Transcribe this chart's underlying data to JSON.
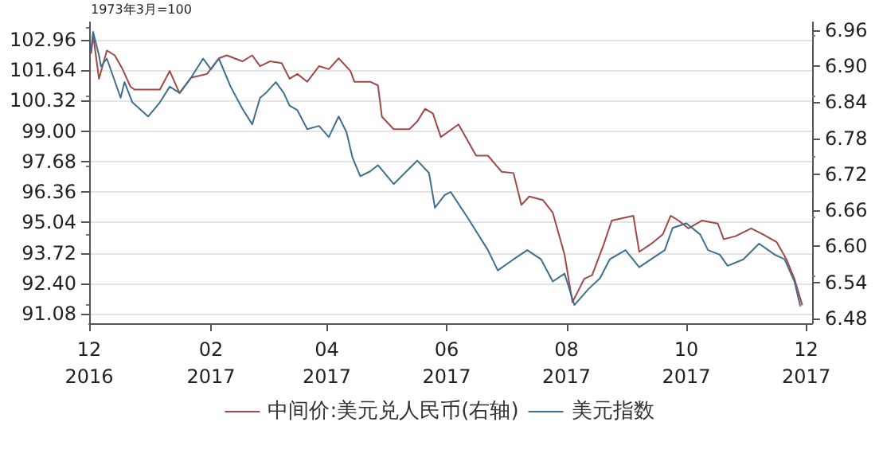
{
  "chart_data": {
    "type": "line",
    "annotations": [
      "1973年3月=100"
    ],
    "x": [
      "2016-12-02",
      "2016-12-03",
      "2016-12-06",
      "2016-12-07",
      "2016-12-10",
      "2016-12-17",
      "2016-12-19",
      "2016-12-23",
      "2016-12-31",
      "2017-01-06",
      "2017-01-11",
      "2017-01-16",
      "2017-01-22",
      "2017-01-28",
      "2017-02-01",
      "2017-02-05",
      "2017-02-11",
      "2017-02-17",
      "2017-02-22",
      "2017-02-26",
      "2017-03-01",
      "2017-03-06",
      "2017-03-10",
      "2017-03-13",
      "2017-03-17",
      "2017-03-22",
      "2017-03-28",
      "2017-04-02",
      "2017-04-07",
      "2017-04-11",
      "2017-04-14",
      "2017-04-18",
      "2017-04-23",
      "2017-04-27",
      "2017-05-05",
      "2017-05-13",
      "2017-05-17",
      "2017-05-23",
      "2017-05-26",
      "2017-05-31",
      "2017-06-03",
      "2017-06-12",
      "2017-06-22",
      "2017-06-27",
      "2017-07-05",
      "2017-07-12",
      "2017-07-19",
      "2017-07-25",
      "2017-07-31",
      "2017-08-05",
      "2017-08-12",
      "2017-08-18",
      "2017-08-23",
      "2017-08-31",
      "2017-09-07",
      "2017-09-13",
      "2017-09-20",
      "2017-09-24",
      "2017-10-01",
      "2017-10-08",
      "2017-10-12",
      "2017-10-18",
      "2017-10-22",
      "2017-10-30",
      "2017-11-07",
      "2017-11-15",
      "2017-11-20",
      "2017-11-25",
      "2017-11-28"
    ],
    "series": [
      {
        "name": "中间价:美元兑人民币(右轴)",
        "color": "#a04848",
        "axis": "y2",
        "x": [
          "2016-12-02",
          "2016-12-03",
          "2016-12-06",
          "2016-12-10",
          "2016-12-14",
          "2016-12-18",
          "2016-12-22",
          "2016-12-24",
          "2017-01-02",
          "2017-01-06",
          "2017-01-11",
          "2017-01-16",
          "2017-01-22",
          "2017-01-30",
          "2017-02-05",
          "2017-02-09",
          "2017-02-17",
          "2017-02-22",
          "2017-02-26",
          "2017-03-03",
          "2017-03-09",
          "2017-03-13",
          "2017-03-17",
          "2017-03-22",
          "2017-03-28",
          "2017-04-02",
          "2017-04-07",
          "2017-04-13",
          "2017-04-15",
          "2017-04-23",
          "2017-04-27",
          "2017-04-29",
          "2017-05-05",
          "2017-05-13",
          "2017-05-17",
          "2017-05-21",
          "2017-05-25",
          "2017-05-29",
          "2017-06-07",
          "2017-06-16",
          "2017-06-22",
          "2017-06-29",
          "2017-07-05",
          "2017-07-09",
          "2017-07-13",
          "2017-07-20",
          "2017-07-25",
          "2017-07-31",
          "2017-08-04",
          "2017-08-10",
          "2017-08-14",
          "2017-08-20",
          "2017-08-24",
          "2017-09-04",
          "2017-09-07",
          "2017-09-13",
          "2017-09-19",
          "2017-09-23",
          "2017-09-27",
          "2017-10-02",
          "2017-10-09",
          "2017-10-17",
          "2017-10-20",
          "2017-10-26",
          "2017-11-03",
          "2017-11-09",
          "2017-11-16",
          "2017-11-21",
          "2017-11-25",
          "2017-11-29"
        ],
        "values": [
          6.921,
          6.952,
          6.879,
          6.926,
          6.918,
          6.895,
          6.866,
          6.861,
          6.861,
          6.861,
          6.892,
          6.855,
          6.881,
          6.887,
          6.913,
          6.918,
          6.908,
          6.918,
          6.9,
          6.908,
          6.905,
          6.879,
          6.887,
          6.874,
          6.9,
          6.895,
          6.913,
          6.892,
          6.874,
          6.874,
          6.868,
          6.816,
          6.795,
          6.795,
          6.808,
          6.829,
          6.821,
          6.782,
          6.803,
          6.751,
          6.751,
          6.724,
          6.722,
          6.669,
          6.683,
          6.677,
          6.656,
          6.586,
          6.507,
          6.546,
          6.552,
          6.604,
          6.643,
          6.651,
          6.591,
          6.604,
          6.62,
          6.651,
          6.643,
          6.63,
          6.643,
          6.638,
          6.612,
          6.617,
          6.63,
          6.62,
          6.607,
          6.578,
          6.546,
          6.502
        ]
      },
      {
        "name": "美元指数",
        "color": "#3f6f8f",
        "values": [
          102.48,
          103.3,
          102.28,
          101.8,
          102.14,
          100.44,
          101.12,
          100.24,
          99.63,
          100.24,
          100.92,
          100.65,
          101.33,
          102.14,
          101.67,
          102.14,
          100.92,
          99.97,
          99.29,
          100.44,
          100.65,
          101.12,
          100.65,
          100.1,
          99.9,
          99.08,
          99.22,
          98.74,
          99.63,
          98.95,
          97.86,
          97.04,
          97.25,
          97.52,
          96.7,
          97.38,
          97.72,
          97.18,
          95.68,
          96.23,
          96.36,
          95.2,
          93.84,
          92.96,
          93.44,
          93.84,
          93.44,
          92.48,
          92.82,
          91.46,
          92.14,
          92.62,
          93.44,
          93.84,
          93.1,
          93.44,
          93.84,
          94.8,
          95.0,
          94.52,
          93.84,
          93.64,
          93.16,
          93.44,
          94.12,
          93.64,
          93.44,
          92.48,
          91.4
        ]
      }
    ],
    "xlim": [
      "2016-12-01",
      "2017-12-04"
    ],
    "xticks": [
      {
        "value": "2016-12-01",
        "label": "12\n2016"
      },
      {
        "value": "2017-02-01",
        "label": "02\n2017"
      },
      {
        "value": "2017-04-01",
        "label": "04\n2017"
      },
      {
        "value": "2017-06-01",
        "label": "06\n2017"
      },
      {
        "value": "2017-08-01",
        "label": "08\n2017"
      },
      {
        "value": "2017-10-01",
        "label": "10\n2017"
      },
      {
        "value": "2017-12-01",
        "label": "12\n2017"
      }
    ],
    "ylim": [
      90.67,
      103.71
    ],
    "yticks": [
      91.08,
      {
        "value": 92.4,
        "label": "92.40"
      },
      93.72,
      95.04,
      96.36,
      97.68,
      {
        "value": 99,
        "label": "99.00"
      },
      100.32,
      101.64,
      102.96
    ],
    "y2lim": [
      6.472,
      6.973
    ],
    "y2ticks": [
      6.48,
      6.54,
      {
        "value": 6.6,
        "label": "6.60"
      },
      6.66,
      6.72,
      6.78,
      6.84,
      {
        "value": 6.9,
        "label": "6.90"
      },
      6.96
    ],
    "grid": "y",
    "legend": "bottom",
    "marker": "none",
    "line_style": "solid"
  }
}
